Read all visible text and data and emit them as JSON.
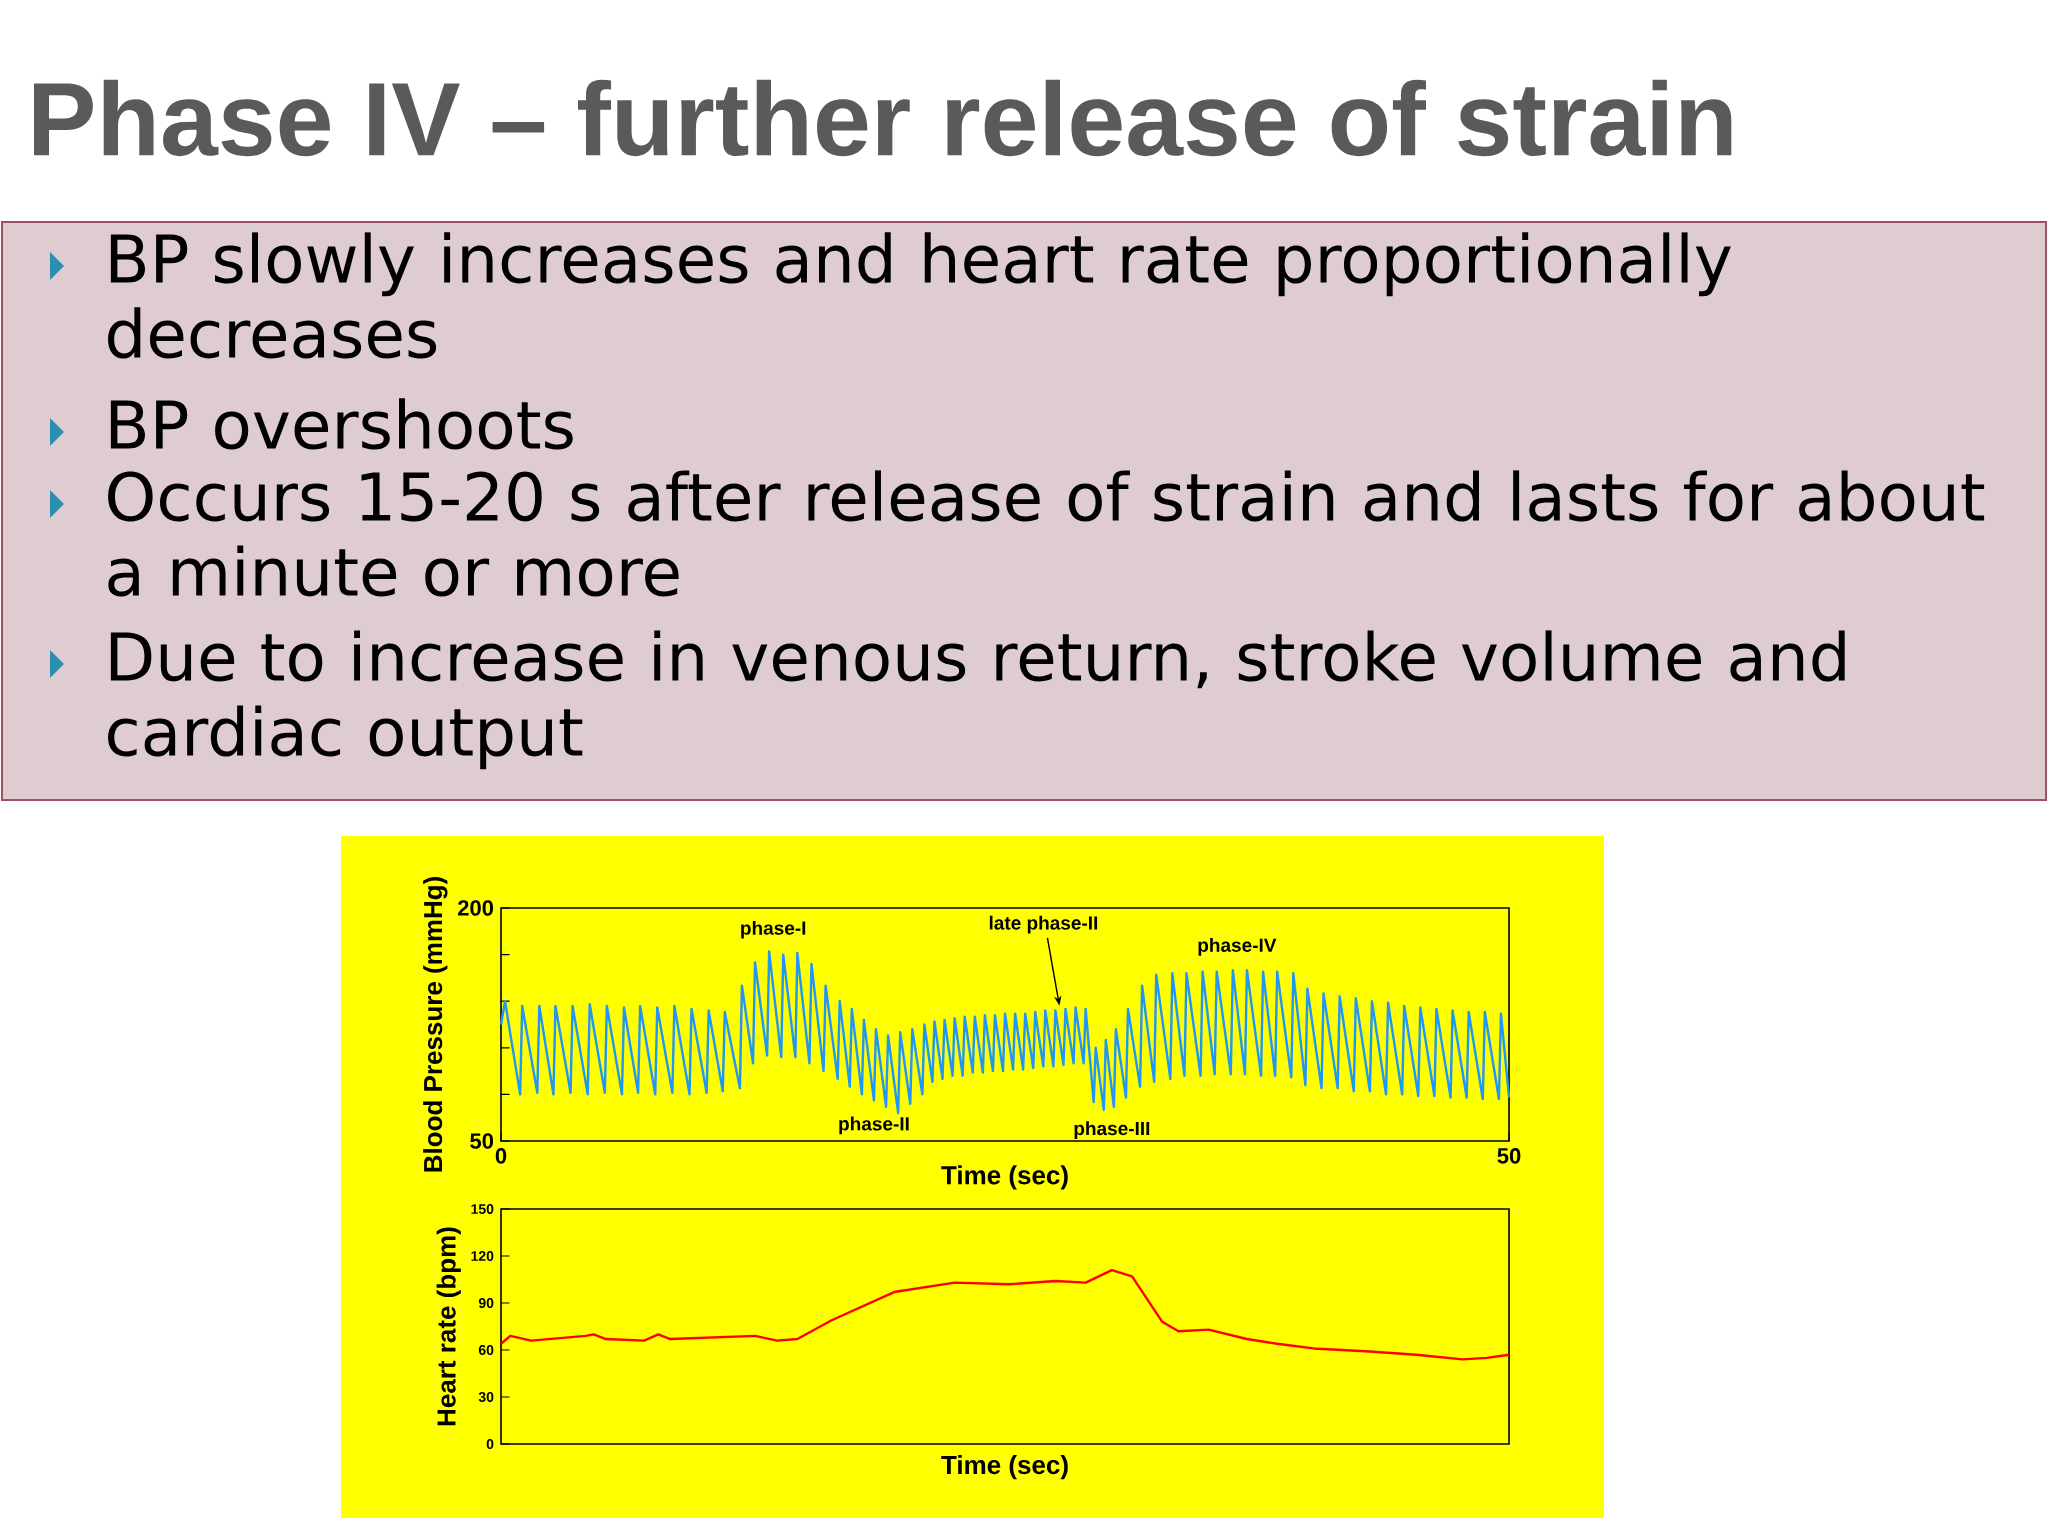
{
  "chart_data": [
    {
      "type": "line",
      "title": "Phase IV – further release of strain",
      "annotations": [
        "BP slowly increases and heart rate proportionally decreases",
        "BP overshoots",
        "Occurs 15-20 s after release of strain and lasts for about a minute or more",
        "Due to increase in venous return, stroke volume and cardiac output",
        "phase-I",
        "phase-II",
        {
          "text": "late phase-II",
          "x": 27.7,
          "y": 137
        },
        "phase-III",
        "phase-IV"
      ],
      "xlabel": "Time (sec)",
      "ylabel": "Blood Pressure (mmHg)",
      "xlim": [
        0,
        50
      ],
      "xticks": [
        0,
        50
      ],
      "ylim": [
        50,
        200
      ],
      "yticks": [
        50,
        {
          "value": 80,
          "label": null
        },
        {
          "value": 110,
          "label": null
        },
        {
          "value": 140,
          "label": null
        },
        {
          "value": 170,
          "label": null
        },
        200
      ],
      "grid": false,
      "series": [
        {
          "color": "#2196f3",
          "x": [
            0,
            0.2,
            0.95,
            1.05,
            1.8,
            1.9,
            2.6,
            2.7,
            3.45,
            3.55,
            4.3,
            4.4,
            5.15,
            5.25,
            6.0,
            6.1,
            6.8,
            6.9,
            7.65,
            7.75,
            8.5,
            8.6,
            9.35,
            9.45,
            10.2,
            10.3,
            11.0,
            11.1,
            11.85,
            11.95,
            12.5,
            12.6,
            13.2,
            13.3,
            13.9,
            14.0,
            14.6,
            14.7,
            15.3,
            15.4,
            16.0,
            16.1,
            16.7,
            16.8,
            17.3,
            17.4,
            17.9,
            18.0,
            18.5,
            18.6,
            19.1,
            19.2,
            19.7,
            19.8,
            20.3,
            20.4,
            20.9,
            21.0,
            21.4,
            21.5,
            21.9,
            22.0,
            22.4,
            22.5,
            22.9,
            23.0,
            23.4,
            23.5,
            23.9,
            24.0,
            24.4,
            24.5,
            24.9,
            25.0,
            25.4,
            25.5,
            25.9,
            26.0,
            26.4,
            26.5,
            26.9,
            27.0,
            27.4,
            27.5,
            27.9,
            28.0,
            28.4,
            28.5,
            28.9,
            29.0,
            29.4,
            29.5,
            29.9,
            30.0,
            30.4,
            30.5,
            31.0,
            31.1,
            31.7,
            31.8,
            32.4,
            32.5,
            33.2,
            33.3,
            33.9,
            34.0,
            34.7,
            34.8,
            35.4,
            35.5,
            36.2,
            36.3,
            36.9,
            37.0,
            37.7,
            37.8,
            38.4,
            38.5,
            39.2,
            39.3,
            39.9,
            40.0,
            40.7,
            40.8,
            41.5,
            41.6,
            42.3,
            42.4,
            43.1,
            43.2,
            43.9,
            44.0,
            44.7,
            44.8,
            45.5,
            45.6,
            46.3,
            46.4,
            47.1,
            47.2,
            47.9,
            48.0,
            48.7,
            48.8,
            49.5,
            49.6,
            50
          ],
          "values": [
            125,
            140,
            80,
            137,
            81,
            137,
            80,
            137,
            81,
            137,
            80,
            138,
            81,
            137,
            80,
            136,
            81,
            137,
            80,
            136,
            81,
            137,
            80,
            135,
            81,
            134,
            82,
            133,
            84,
            150,
            100,
            165,
            105,
            172,
            104,
            170,
            104,
            171,
            100,
            164,
            95,
            150,
            90,
            140,
            85,
            135,
            80,
            128,
            76,
            122,
            72,
            118,
            68,
            120,
            74,
            122,
            80,
            125,
            88,
            127,
            90,
            128,
            92,
            129,
            92,
            130,
            94,
            130,
            94,
            131,
            95,
            131,
            95,
            132,
            96,
            132,
            96,
            132,
            97,
            133,
            98,
            134,
            98,
            134,
            99,
            135,
            100,
            136,
            100,
            135,
            75,
            110,
            70,
            115,
            72,
            122,
            78,
            135,
            85,
            150,
            88,
            157,
            90,
            158,
            92,
            158,
            92,
            159,
            93,
            159,
            93,
            160,
            93,
            160,
            92,
            159,
            92,
            159,
            91,
            158,
            86,
            148,
            84,
            145,
            84,
            143,
            82,
            142,
            82,
            140,
            80,
            139,
            80,
            137,
            79,
            136,
            79,
            135,
            78,
            134,
            78,
            133,
            77,
            133,
            77,
            132,
            78
          ]
        }
      ]
    },
    {
      "type": "line",
      "xlabel": "Time (sec)",
      "ylabel": "Heart rate (bpm)",
      "xlim": [
        0,
        50
      ],
      "ylim": [
        0,
        150
      ],
      "yticks": [
        0,
        30,
        60,
        90,
        120,
        150
      ],
      "tick_labels": "y",
      "grid": false,
      "series": [
        {
          "color": "#ff0000",
          "x": [
            0,
            0.46,
            1.5,
            4.2,
            4.6,
            5.2,
            7.1,
            7.8,
            8.4,
            12.6,
            13.7,
            14.7,
            16.4,
            19.5,
            22.5,
            25.2,
            27.5,
            29.0,
            30.3,
            31.3,
            32.8,
            33.6,
            35.1,
            37.0,
            38.5,
            40.3,
            43.1,
            45.4,
            47.7,
            48.9,
            50
          ],
          "values": [
            64,
            69,
            66,
            69,
            70,
            67,
            66,
            70,
            67,
            69,
            66,
            67,
            79,
            97,
            103,
            102,
            104,
            103,
            111,
            107,
            78,
            72,
            73,
            67,
            64,
            61,
            59,
            57,
            54,
            55,
            57
          ]
        }
      ]
    }
  ]
}
